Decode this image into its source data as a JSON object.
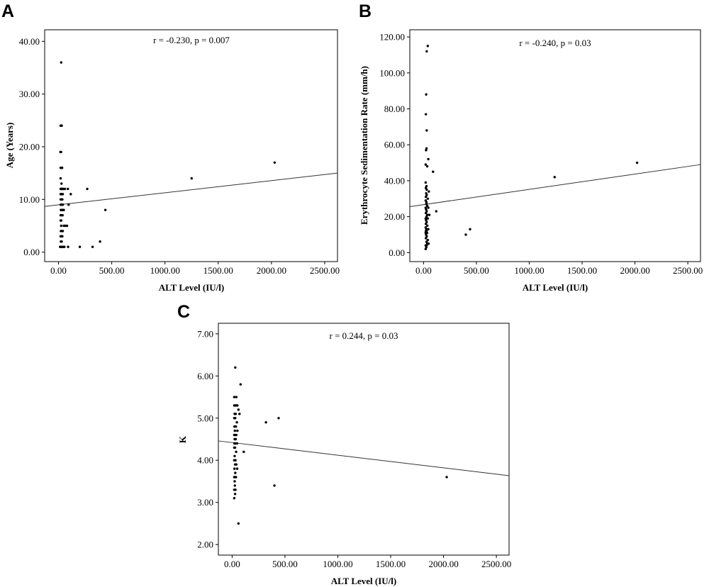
{
  "chart_data": [
    {
      "panel": "A",
      "type": "scatter",
      "annotation": "r = -0.230, p = 0.007",
      "xlabel": "ALT Level (IU/l)",
      "ylabel": "Age (Years)",
      "xlim": [
        -130,
        2620
      ],
      "ylim": [
        -1.8,
        42.2
      ],
      "xticks": [
        0,
        500,
        1000,
        1500,
        2000,
        2500
      ],
      "xtick_labels": [
        "0.00",
        "500.00",
        "1000.00",
        "1500.00",
        "2000.00",
        "2500.00"
      ],
      "yticks": [
        0,
        10,
        20,
        30,
        40
      ],
      "ytick_labels": [
        "0.00",
        "10.00",
        "20.00",
        "30.00",
        "40.00"
      ],
      "fit_line": {
        "intercept": 8.97,
        "slope": 0.0023
      },
      "grid": false,
      "legend": "none",
      "points": [
        [
          25,
          36
        ],
        [
          20,
          24
        ],
        [
          25,
          24
        ],
        [
          30,
          24
        ],
        [
          18,
          19
        ],
        [
          24,
          19
        ],
        [
          20,
          16
        ],
        [
          28,
          16
        ],
        [
          34,
          16
        ],
        [
          20,
          14
        ],
        [
          28,
          13
        ],
        [
          20,
          12
        ],
        [
          24,
          12
        ],
        [
          28,
          12
        ],
        [
          34,
          12
        ],
        [
          40,
          12
        ],
        [
          48,
          12
        ],
        [
          60,
          12
        ],
        [
          88,
          12
        ],
        [
          20,
          11
        ],
        [
          30,
          11
        ],
        [
          40,
          11
        ],
        [
          115,
          11
        ],
        [
          20,
          10
        ],
        [
          28,
          10
        ],
        [
          36,
          10
        ],
        [
          20,
          9
        ],
        [
          28,
          9
        ],
        [
          40,
          9
        ],
        [
          95,
          9
        ],
        [
          22,
          8
        ],
        [
          28,
          8
        ],
        [
          34,
          8
        ],
        [
          40,
          8
        ],
        [
          50,
          8
        ],
        [
          20,
          7
        ],
        [
          28,
          7
        ],
        [
          38,
          7
        ],
        [
          20,
          6
        ],
        [
          26,
          6
        ],
        [
          25,
          5
        ],
        [
          50,
          5
        ],
        [
          65,
          5
        ],
        [
          80,
          5
        ],
        [
          22,
          4
        ],
        [
          30,
          4
        ],
        [
          40,
          4
        ],
        [
          20,
          3
        ],
        [
          28,
          3
        ],
        [
          36,
          3
        ],
        [
          22,
          2
        ],
        [
          30,
          2
        ],
        [
          15,
          1
        ],
        [
          20,
          1
        ],
        [
          24,
          1
        ],
        [
          28,
          1
        ],
        [
          32,
          1
        ],
        [
          36,
          1
        ],
        [
          40,
          1
        ],
        [
          45,
          1
        ],
        [
          55,
          1
        ],
        [
          90,
          1
        ],
        [
          200,
          1
        ],
        [
          320,
          1
        ],
        [
          270,
          12
        ],
        [
          390,
          2
        ],
        [
          440,
          8
        ],
        [
          1250,
          14
        ],
        [
          2030,
          17
        ]
      ]
    },
    {
      "panel": "B",
      "type": "scatter",
      "annotation": "r = -0.240, p = 0.03",
      "xlabel": "ALT Level (IU/l)",
      "ylabel": "Erythrocyte Sedimentation Rate (mm/h)",
      "xlim": [
        -130,
        2620
      ],
      "ylim": [
        -5,
        124
      ],
      "xticks": [
        0,
        500,
        1000,
        1500,
        2000,
        2500
      ],
      "xtick_labels": [
        "0.00",
        "500.00",
        "1000.00",
        "1500.00",
        "2000.00",
        "2500.00"
      ],
      "yticks": [
        0,
        20,
        40,
        60,
        80,
        100,
        120
      ],
      "ytick_labels": [
        "0.00",
        "20.00",
        "40.00",
        "60.00",
        "80.00",
        "100.00",
        "120.00"
      ],
      "fit_line": {
        "intercept": 26.7,
        "slope": 0.0085
      },
      "grid": false,
      "legend": "none",
      "points": [
        [
          40,
          115
        ],
        [
          30,
          112
        ],
        [
          25,
          88
        ],
        [
          22,
          77
        ],
        [
          30,
          68
        ],
        [
          28,
          58
        ],
        [
          24,
          57
        ],
        [
          45,
          52
        ],
        [
          20,
          49
        ],
        [
          35,
          48
        ],
        [
          90,
          45
        ],
        [
          20,
          39
        ],
        [
          28,
          37
        ],
        [
          22,
          36
        ],
        [
          30,
          35
        ],
        [
          50,
          34
        ],
        [
          25,
          33
        ],
        [
          30,
          32
        ],
        [
          22,
          31
        ],
        [
          40,
          30
        ],
        [
          20,
          29
        ],
        [
          28,
          28
        ],
        [
          26,
          27
        ],
        [
          35,
          26
        ],
        [
          20,
          25
        ],
        [
          45,
          25
        ],
        [
          24,
          24
        ],
        [
          30,
          23
        ],
        [
          22,
          22
        ],
        [
          35,
          21
        ],
        [
          55,
          21
        ],
        [
          28,
          20
        ],
        [
          20,
          19
        ],
        [
          40,
          19
        ],
        [
          24,
          18
        ],
        [
          30,
          17
        ],
        [
          22,
          16
        ],
        [
          36,
          15
        ],
        [
          20,
          14
        ],
        [
          26,
          13
        ],
        [
          32,
          13
        ],
        [
          45,
          13
        ],
        [
          22,
          12
        ],
        [
          28,
          12
        ],
        [
          20,
          11
        ],
        [
          34,
          11
        ],
        [
          24,
          10
        ],
        [
          30,
          9
        ],
        [
          22,
          8
        ],
        [
          40,
          7
        ],
        [
          28,
          6
        ],
        [
          35,
          5
        ],
        [
          48,
          5
        ],
        [
          20,
          4
        ],
        [
          30,
          4
        ],
        [
          26,
          3
        ],
        [
          20,
          2
        ],
        [
          120,
          23
        ],
        [
          400,
          10
        ],
        [
          440,
          13
        ],
        [
          1240,
          42
        ],
        [
          2020,
          50
        ]
      ]
    },
    {
      "panel": "C",
      "type": "scatter",
      "annotation": "r = 0.244, p = 0.03",
      "xlabel": "ALT Level (IU/l)",
      "ylabel": "K",
      "xlim": [
        -130,
        2620
      ],
      "ylim": [
        1.75,
        7.25
      ],
      "xticks": [
        0,
        500,
        1000,
        1500,
        2000,
        2500
      ],
      "xtick_labels": [
        "0.00",
        "500.00",
        "1000.00",
        "1500.00",
        "2000.00",
        "2500.00"
      ],
      "yticks": [
        2,
        3,
        4,
        5,
        6,
        7
      ],
      "ytick_labels": [
        "2.00",
        "3.00",
        "4.00",
        "5.00",
        "6.00",
        "7.00"
      ],
      "fit_line": {
        "intercept": 4.42,
        "slope": -0.0003
      },
      "grid": false,
      "legend": "none",
      "points": [
        [
          30,
          6.2
        ],
        [
          80,
          5.8
        ],
        [
          20,
          5.5
        ],
        [
          40,
          5.5
        ],
        [
          20,
          5.3
        ],
        [
          26,
          5.3
        ],
        [
          32,
          5.3
        ],
        [
          40,
          5.3
        ],
        [
          50,
          5.3
        ],
        [
          60,
          5.2
        ],
        [
          70,
          5.1
        ],
        [
          24,
          5.1
        ],
        [
          34,
          5.1
        ],
        [
          20,
          5.0
        ],
        [
          30,
          5.0
        ],
        [
          45,
          4.9
        ],
        [
          22,
          4.8
        ],
        [
          36,
          4.8
        ],
        [
          26,
          4.7
        ],
        [
          50,
          4.7
        ],
        [
          20,
          4.6
        ],
        [
          30,
          4.6
        ],
        [
          40,
          4.6
        ],
        [
          24,
          4.5
        ],
        [
          34,
          4.5
        ],
        [
          22,
          4.4
        ],
        [
          30,
          4.4
        ],
        [
          46,
          4.4
        ],
        [
          20,
          4.3
        ],
        [
          28,
          4.3
        ],
        [
          38,
          4.2
        ],
        [
          110,
          4.2
        ],
        [
          24,
          4.1
        ],
        [
          32,
          4.0
        ],
        [
          20,
          4.0
        ],
        [
          28,
          3.9
        ],
        [
          40,
          3.9
        ],
        [
          22,
          3.8
        ],
        [
          48,
          3.8
        ],
        [
          30,
          3.7
        ],
        [
          20,
          3.6
        ],
        [
          36,
          3.6
        ],
        [
          24,
          3.5
        ],
        [
          26,
          3.4
        ],
        [
          20,
          3.3
        ],
        [
          32,
          3.3
        ],
        [
          28,
          3.2
        ],
        [
          20,
          3.1
        ],
        [
          60,
          2.5
        ],
        [
          320,
          4.9
        ],
        [
          440,
          5.0
        ],
        [
          400,
          3.4
        ],
        [
          2030,
          3.6
        ]
      ]
    }
  ]
}
